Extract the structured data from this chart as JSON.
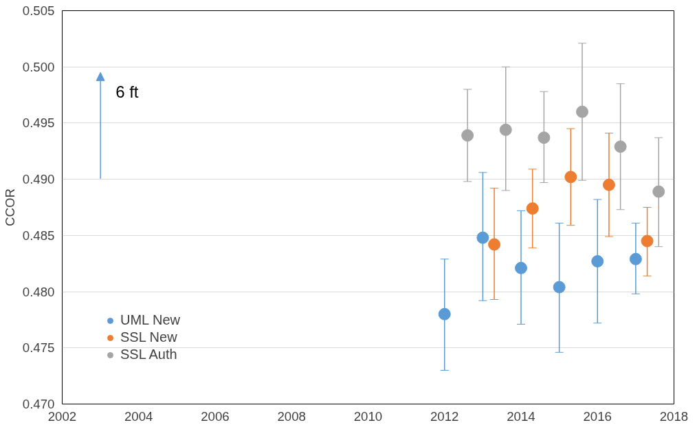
{
  "chart_data": {
    "type": "scatter",
    "ylabel": "CCOR",
    "xlim": [
      2002,
      2018
    ],
    "xticks": [
      2002,
      2004,
      2006,
      2008,
      2010,
      2012,
      2014,
      2016,
      2018
    ],
    "ylim": [
      0.47,
      0.505
    ],
    "yticks": [
      {
        "value": 0.47,
        "label": "0.470"
      },
      {
        "value": 0.475,
        "label": "0.475"
      },
      {
        "value": 0.48,
        "label": "0.480"
      },
      {
        "value": 0.485,
        "label": "0.485"
      },
      {
        "value": 0.49,
        "label": "0.490"
      },
      {
        "value": 0.495,
        "label": "0.495"
      },
      {
        "value": 0.5,
        "label": "0.500"
      },
      {
        "value": 0.505,
        "label": "0.505"
      }
    ],
    "grid": "y",
    "legend": "bottom left",
    "marker": "circle",
    "annotations": [
      "6 ft"
    ],
    "series": [
      {
        "name": "UML New",
        "color": "#5b9bd5",
        "x": [
          2012,
          2013,
          2014,
          2015,
          2016,
          2017
        ],
        "values": [
          0.478,
          0.4848,
          0.4821,
          0.4804,
          0.4827,
          0.4829
        ],
        "errors": [
          [
            0.473,
            0.4829
          ],
          [
            0.4792,
            0.4906
          ],
          [
            0.4771,
            0.4872
          ],
          [
            0.4746,
            0.4861
          ],
          [
            0.4772,
            0.4882
          ],
          [
            0.4798,
            0.4861
          ]
        ]
      },
      {
        "name": "SSL New",
        "color": "#ed7d31",
        "x": [
          2013.3,
          2014.3,
          2015.3,
          2016.3,
          2017.3
        ],
        "values": [
          0.4842,
          0.4874,
          0.4902,
          0.4895,
          0.4845
        ],
        "errors": [
          [
            0.4793,
            0.4892
          ],
          [
            0.4839,
            0.4909
          ],
          [
            0.4859,
            0.4945
          ],
          [
            0.4849,
            0.4941
          ],
          [
            0.4814,
            0.4875
          ]
        ]
      },
      {
        "name": "SSL Auth",
        "color": "#a5a5a5",
        "x": [
          2012.6,
          2013.6,
          2014.6,
          2015.6,
          2016.6,
          2017.6
        ],
        "values": [
          0.4939,
          0.4944,
          0.4937,
          0.496,
          0.4929,
          0.4889
        ],
        "errors": [
          [
            0.4898,
            0.498
          ],
          [
            0.489,
            0.5
          ],
          [
            0.4897,
            0.4978
          ],
          [
            0.4899,
            0.5021
          ],
          [
            0.4873,
            0.4985
          ],
          [
            0.484,
            0.4937
          ]
        ]
      }
    ]
  }
}
